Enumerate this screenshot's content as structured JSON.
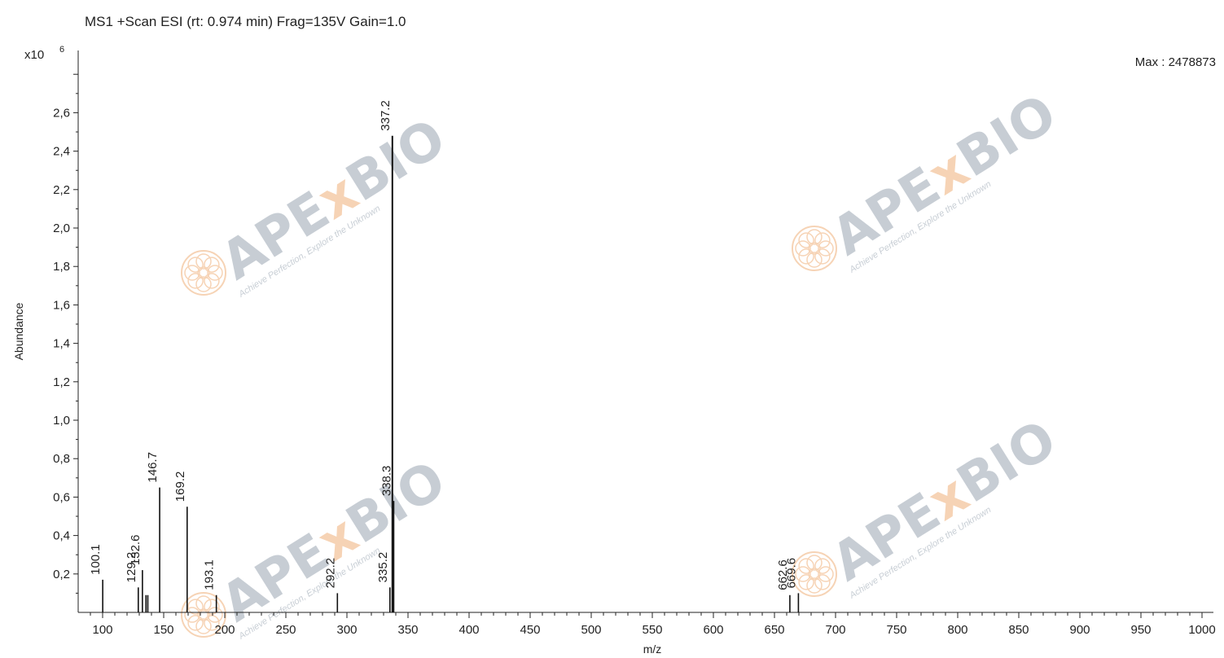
{
  "chart_data": {
    "type": "bar",
    "title": "MS1 +Scan ESI (rt: 0.974 min) Frag=135V Gain=1.0",
    "xlabel": "m/z",
    "ylabel": "Abundance",
    "y_multiplier_label": "x10",
    "y_multiplier_exponent": "6",
    "max_annotation": "Max : 2478873",
    "xlim": [
      90,
      1000
    ],
    "ylim": [
      0,
      2.92
    ],
    "x_ticks": [
      100,
      150,
      200,
      250,
      300,
      350,
      400,
      450,
      500,
      550,
      600,
      650,
      700,
      750,
      800,
      850,
      900,
      950,
      1000
    ],
    "x_tick_labels": [
      "100",
      "150",
      "200",
      "250",
      "300",
      "350",
      "400",
      "450",
      "500",
      "550",
      "600",
      "650",
      "700",
      "750",
      "800",
      "850",
      "900",
      "950",
      "1000"
    ],
    "y_ticks": [
      0.2,
      0.4,
      0.6,
      0.8,
      1.0,
      1.2,
      1.4,
      1.6,
      1.8,
      2.0,
      2.2,
      2.4,
      2.6
    ],
    "y_tick_labels": [
      "0,2",
      "0,4",
      "0,6",
      "0,8",
      "1,0",
      "1,2",
      "1,4",
      "1,6",
      "1,8",
      "2,0",
      "2,2",
      "2,4",
      "2,6"
    ],
    "grid": false,
    "peaks": [
      {
        "mz": 100.1,
        "abundance": 0.17,
        "label": "100.1"
      },
      {
        "mz": 129.2,
        "abundance": 0.13,
        "label": "129.2"
      },
      {
        "mz": 132.6,
        "abundance": 0.22,
        "label": "132.6"
      },
      {
        "mz": 135.5,
        "abundance": 0.09,
        "label": ""
      },
      {
        "mz": 137.0,
        "abundance": 0.09,
        "label": ""
      },
      {
        "mz": 146.7,
        "abundance": 0.65,
        "label": "146.7"
      },
      {
        "mz": 169.2,
        "abundance": 0.55,
        "label": "169.2"
      },
      {
        "mz": 193.1,
        "abundance": 0.09,
        "label": "193.1"
      },
      {
        "mz": 292.2,
        "abundance": 0.1,
        "label": "292.2"
      },
      {
        "mz": 335.2,
        "abundance": 0.13,
        "label": "335.2"
      },
      {
        "mz": 337.2,
        "abundance": 2.48,
        "label": "337.2"
      },
      {
        "mz": 338.3,
        "abundance": 0.58,
        "label": "338.3"
      },
      {
        "mz": 662.6,
        "abundance": 0.09,
        "label": "662.6"
      },
      {
        "mz": 669.6,
        "abundance": 0.1,
        "label": "669.6"
      }
    ]
  },
  "watermark": {
    "brand": "APExBIO",
    "tagline": "Achieve Perfection, Explore the Unknown",
    "brand_color": "#9aa6b2",
    "accent_color": "#f0b07a",
    "logo_icon": "flower-logo-icon"
  }
}
